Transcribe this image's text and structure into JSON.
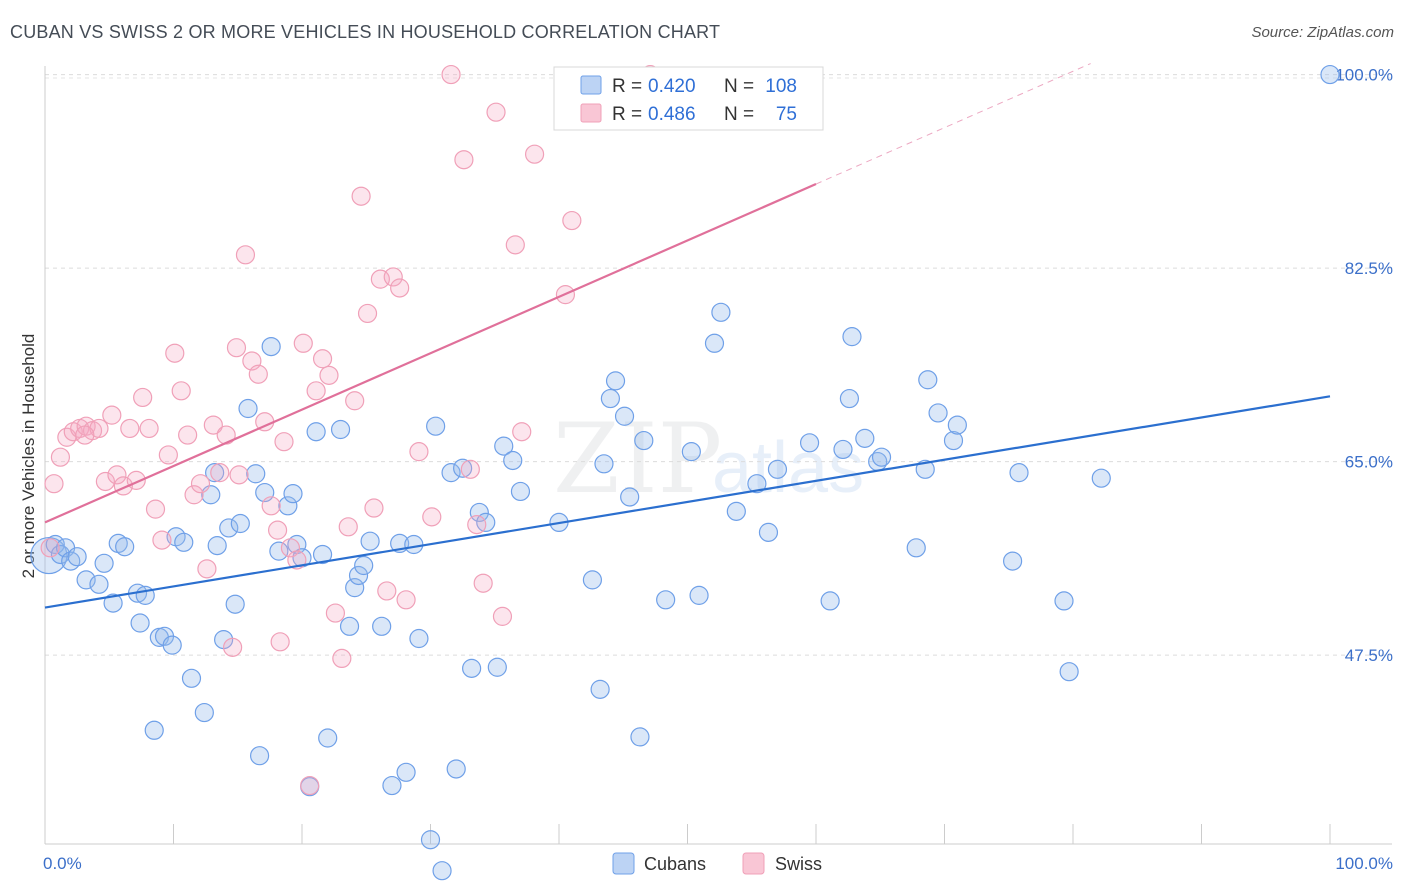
{
  "title": "CUBAN VS SWISS 2 OR MORE VEHICLES IN HOUSEHOLD CORRELATION CHART",
  "source": "Source: ZipAtlas.com",
  "watermark": {
    "zip": "ZIP",
    "atlas": "atlas"
  },
  "chart_data": {
    "type": "scatter",
    "ylabel": "2 or more Vehicles in Household",
    "xlim": [
      0,
      100
    ],
    "ylim": [
      31.5,
      101.5
    ],
    "x_tick_labels": [
      "0.0%",
      "100.0%"
    ],
    "y_ticks": [
      47.5,
      65.0,
      82.5,
      100.0
    ],
    "y_tick_labels": [
      "47.5%",
      "65.0%",
      "82.5%",
      "100.0%"
    ],
    "colors": {
      "cubans": "#6fa0e8",
      "swiss": "#f0a0b8",
      "cubans_line": "#2b6fcf",
      "swiss_line": "#e0709a"
    },
    "legend": {
      "rows": [
        {
          "r_label": "R =",
          "r_value": "0.420",
          "n_label": "N =",
          "n_value": "108"
        },
        {
          "r_label": "R =",
          "r_value": "0.486",
          "n_label": "N =",
          "n_value": "75"
        }
      ]
    },
    "series": [
      {
        "name": "Cubans",
        "trend": {
          "x": [
            0,
            100
          ],
          "y": [
            51.8,
            70.9
          ],
          "solid_until": 100
        },
        "points": [
          [
            0.3,
            56.5
          ],
          [
            0.8,
            57.5
          ],
          [
            1.2,
            56.6
          ],
          [
            1.6,
            57.2
          ],
          [
            2.0,
            56.0
          ],
          [
            2.5,
            56.4
          ],
          [
            3.2,
            54.3
          ],
          [
            4.2,
            53.9
          ],
          [
            4.6,
            55.8
          ],
          [
            5.3,
            52.2
          ],
          [
            5.7,
            57.6
          ],
          [
            6.2,
            57.3
          ],
          [
            7.2,
            53.1
          ],
          [
            7.4,
            50.4
          ],
          [
            7.8,
            52.9
          ],
          [
            8.5,
            40.7
          ],
          [
            8.9,
            49.1
          ],
          [
            9.3,
            49.2
          ],
          [
            9.9,
            48.4
          ],
          [
            10.2,
            58.2
          ],
          [
            10.8,
            57.7
          ],
          [
            11.4,
            45.4
          ],
          [
            12.4,
            42.3
          ],
          [
            12.9,
            62.0
          ],
          [
            13.2,
            64.0
          ],
          [
            13.4,
            57.4
          ],
          [
            13.9,
            48.9
          ],
          [
            14.3,
            59.0
          ],
          [
            14.8,
            52.1
          ],
          [
            15.2,
            59.4
          ],
          [
            15.8,
            69.8
          ],
          [
            16.4,
            63.9
          ],
          [
            16.7,
            38.4
          ],
          [
            17.1,
            62.2
          ],
          [
            17.6,
            75.4
          ],
          [
            18.2,
            56.9
          ],
          [
            18.9,
            61.0
          ],
          [
            19.3,
            62.1
          ],
          [
            19.6,
            57.5
          ],
          [
            20.0,
            56.3
          ],
          [
            20.6,
            35.6
          ],
          [
            21.1,
            67.7
          ],
          [
            21.6,
            56.6
          ],
          [
            22.0,
            40.0
          ],
          [
            23.0,
            67.9
          ],
          [
            23.7,
            50.1
          ],
          [
            24.1,
            53.6
          ],
          [
            24.4,
            54.7
          ],
          [
            24.8,
            55.6
          ],
          [
            25.3,
            57.8
          ],
          [
            26.2,
            50.1
          ],
          [
            27.0,
            35.7
          ],
          [
            27.6,
            57.6
          ],
          [
            28.1,
            36.9
          ],
          [
            28.7,
            57.5
          ],
          [
            29.1,
            49.0
          ],
          [
            30.0,
            30.8
          ],
          [
            30.4,
            68.2
          ],
          [
            31.6,
            64.0
          ],
          [
            32.0,
            37.2
          ],
          [
            32.5,
            64.4
          ],
          [
            33.2,
            46.3
          ],
          [
            33.8,
            60.4
          ],
          [
            34.3,
            59.5
          ],
          [
            35.2,
            46.4
          ],
          [
            35.7,
            66.4
          ],
          [
            36.4,
            65.1
          ],
          [
            37.0,
            62.3
          ],
          [
            40.0,
            59.5
          ],
          [
            42.6,
            54.3
          ],
          [
            43.2,
            44.4
          ],
          [
            43.5,
            64.8
          ],
          [
            44.0,
            70.7
          ],
          [
            44.4,
            72.3
          ],
          [
            45.1,
            69.1
          ],
          [
            45.5,
            61.8
          ],
          [
            46.3,
            40.1
          ],
          [
            46.6,
            66.9
          ],
          [
            48.3,
            52.5
          ],
          [
            50.3,
            65.9
          ],
          [
            50.9,
            52.9
          ],
          [
            52.1,
            75.7
          ],
          [
            52.6,
            78.5
          ],
          [
            53.8,
            60.5
          ],
          [
            55.4,
            63.0
          ],
          [
            56.3,
            58.6
          ],
          [
            57.0,
            64.3
          ],
          [
            59.5,
            66.7
          ],
          [
            61.1,
            52.4
          ],
          [
            62.1,
            66.1
          ],
          [
            62.6,
            70.7
          ],
          [
            62.8,
            76.3
          ],
          [
            63.8,
            67.1
          ],
          [
            64.8,
            65.0
          ],
          [
            65.1,
            65.4
          ],
          [
            67.8,
            57.2
          ],
          [
            68.5,
            64.3
          ],
          [
            68.7,
            72.4
          ],
          [
            69.5,
            69.4
          ],
          [
            70.7,
            66.9
          ],
          [
            71.0,
            68.3
          ],
          [
            75.3,
            56.0
          ],
          [
            75.8,
            64.0
          ],
          [
            79.3,
            52.4
          ],
          [
            79.7,
            46.0
          ],
          [
            82.2,
            63.5
          ],
          [
            100.0,
            100.0
          ],
          [
            30.9,
            28.0
          ]
        ]
      },
      {
        "name": "Swiss",
        "trend": {
          "x": [
            0,
            100
          ],
          "y": [
            59.5,
            110.5
          ],
          "solid_until": 60
        },
        "points": [
          [
            0.4,
            57.2
          ],
          [
            0.7,
            63.0
          ],
          [
            1.2,
            65.4
          ],
          [
            1.7,
            67.2
          ],
          [
            2.2,
            67.7
          ],
          [
            2.7,
            68.0
          ],
          [
            3.2,
            68.2
          ],
          [
            3.7,
            67.8
          ],
          [
            4.2,
            68.0
          ],
          [
            4.7,
            63.2
          ],
          [
            5.2,
            69.2
          ],
          [
            5.6,
            63.8
          ],
          [
            6.1,
            62.8
          ],
          [
            6.6,
            68.0
          ],
          [
            7.1,
            63.3
          ],
          [
            7.6,
            70.8
          ],
          [
            8.1,
            68.0
          ],
          [
            8.6,
            60.7
          ],
          [
            9.1,
            57.9
          ],
          [
            9.6,
            65.6
          ],
          [
            10.1,
            74.8
          ],
          [
            10.6,
            71.4
          ],
          [
            11.1,
            67.4
          ],
          [
            11.6,
            62.0
          ],
          [
            12.1,
            63.0
          ],
          [
            12.6,
            55.3
          ],
          [
            13.1,
            68.3
          ],
          [
            13.6,
            64.0
          ],
          [
            14.1,
            67.4
          ],
          [
            14.6,
            48.2
          ],
          [
            15.1,
            63.8
          ],
          [
            15.6,
            83.7
          ],
          [
            16.1,
            74.1
          ],
          [
            16.6,
            72.9
          ],
          [
            17.1,
            68.6
          ],
          [
            17.6,
            61.0
          ],
          [
            18.1,
            58.8
          ],
          [
            18.6,
            66.8
          ],
          [
            19.1,
            57.2
          ],
          [
            19.6,
            56.1
          ],
          [
            20.1,
            75.7
          ],
          [
            20.6,
            35.7
          ],
          [
            21.1,
            71.4
          ],
          [
            21.6,
            74.3
          ],
          [
            22.1,
            72.8
          ],
          [
            22.6,
            51.3
          ],
          [
            23.1,
            47.2
          ],
          [
            23.6,
            59.1
          ],
          [
            24.1,
            70.5
          ],
          [
            24.6,
            89.0
          ],
          [
            25.1,
            78.4
          ],
          [
            25.6,
            60.8
          ],
          [
            26.1,
            81.5
          ],
          [
            26.6,
            53.3
          ],
          [
            27.1,
            81.7
          ],
          [
            27.6,
            80.7
          ],
          [
            28.1,
            52.5
          ],
          [
            29.1,
            65.9
          ],
          [
            30.1,
            60.0
          ],
          [
            31.6,
            100.0
          ],
          [
            32.6,
            92.3
          ],
          [
            33.1,
            64.3
          ],
          [
            33.6,
            59.3
          ],
          [
            34.1,
            54.0
          ],
          [
            35.1,
            96.6
          ],
          [
            35.6,
            51.0
          ],
          [
            36.6,
            84.6
          ],
          [
            37.1,
            67.7
          ],
          [
            38.1,
            92.8
          ],
          [
            40.5,
            80.1
          ],
          [
            41.0,
            86.8
          ],
          [
            47.1,
            100.0
          ],
          [
            14.9,
            75.3
          ],
          [
            18.3,
            48.7
          ],
          [
            3.1,
            67.4
          ]
        ]
      }
    ],
    "bottom_legend": [
      "Cubans",
      "Swiss"
    ]
  }
}
